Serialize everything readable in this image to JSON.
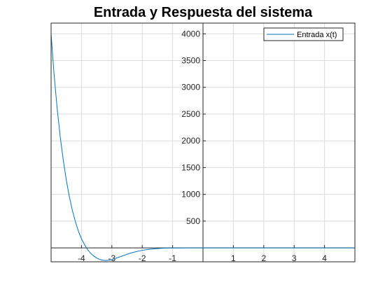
{
  "chart_data": {
    "type": "line",
    "title": "Entrada y Respuesta del sistema",
    "xlabel": "",
    "ylabel": "",
    "xlim": [
      -5,
      5
    ],
    "ylim": [
      -260,
      4200
    ],
    "x_ticks": [
      -4,
      -3,
      -2,
      -1,
      1,
      2,
      3,
      4
    ],
    "y_ticks": [
      500,
      1000,
      1500,
      2000,
      2500,
      3000,
      3500,
      4000
    ],
    "grid": true,
    "legend_position": "top-right",
    "series": [
      {
        "name": "Entrada x(t)",
        "color": "#0072bd",
        "x": [
          -5.0,
          -4.95,
          -4.9,
          -4.8,
          -4.7,
          -4.6,
          -4.5,
          -4.4,
          -4.3,
          -4.2,
          -4.1,
          -4.0,
          -3.9,
          -3.8,
          -3.7,
          -3.6,
          -3.5,
          -3.4,
          -3.3,
          -3.2,
          -3.1,
          -3.0,
          -2.9,
          -2.8,
          -2.6,
          -2.4,
          -2.2,
          -2.0,
          -1.8,
          -1.6,
          -1.4,
          -1.2,
          -1.0,
          -0.8,
          -0.6,
          -0.4,
          -0.2,
          0.0,
          1.0,
          2.0,
          3.0,
          4.0,
          5.0
        ],
        "y": [
          4000,
          3600,
          3230,
          2600,
          2080,
          1640,
          1270,
          960,
          700,
          490,
          310,
          170,
          60,
          -30,
          -100,
          -150,
          -190,
          -215,
          -230,
          -235,
          -230,
          -220,
          -200,
          -180,
          -140,
          -100,
          -70,
          -45,
          -28,
          -16,
          -9,
          -4,
          -2,
          -1,
          0,
          0,
          0,
          0,
          0,
          0,
          0,
          0,
          0
        ]
      }
    ]
  }
}
